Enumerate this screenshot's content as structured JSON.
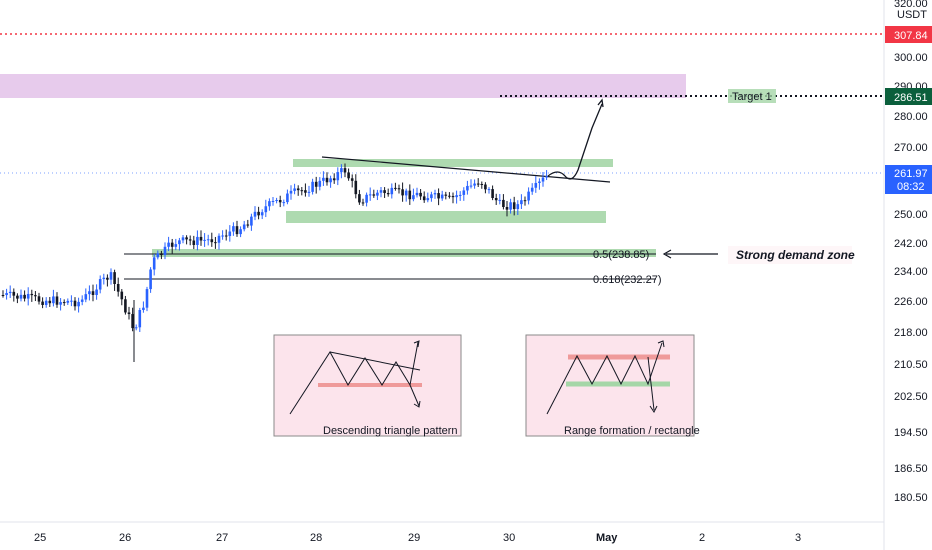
{
  "chart_data": {
    "type": "candlestick",
    "y_axis": {
      "ticks": [
        "320.00",
        "300.00",
        "290.00",
        "280.00",
        "270.00",
        "250.00",
        "242.00",
        "234.00",
        "226.00",
        "218.00",
        "210.50",
        "202.50",
        "194.50",
        "186.50",
        "180.50"
      ],
      "currency": "USDT"
    },
    "x_axis": {
      "ticks": [
        "25",
        "26",
        "27",
        "28",
        "29",
        "30",
        "May",
        "2",
        "3"
      ]
    },
    "levels": [
      {
        "label": "0.5(238.85)",
        "value": 238.85
      },
      {
        "label": "0.618(232.27)",
        "value": 232.27
      }
    ],
    "price_tags": [
      {
        "value": "307.84",
        "color": "#f23645"
      },
      {
        "value": "286.51",
        "color": "#0b5f3c"
      },
      {
        "value": "261.97",
        "sub": "08:32",
        "color": "#2962ff"
      }
    ],
    "target_label": "Target 1",
    "annotation": "Strong demand zone",
    "insets": [
      {
        "caption": "Descending triangle pattern"
      },
      {
        "caption": "Range formation / rectangle"
      }
    ],
    "colors": {
      "up": "#2962ff",
      "down": "#131722",
      "supply": "#e1bee7",
      "demand": "#a5d6a7"
    }
  }
}
